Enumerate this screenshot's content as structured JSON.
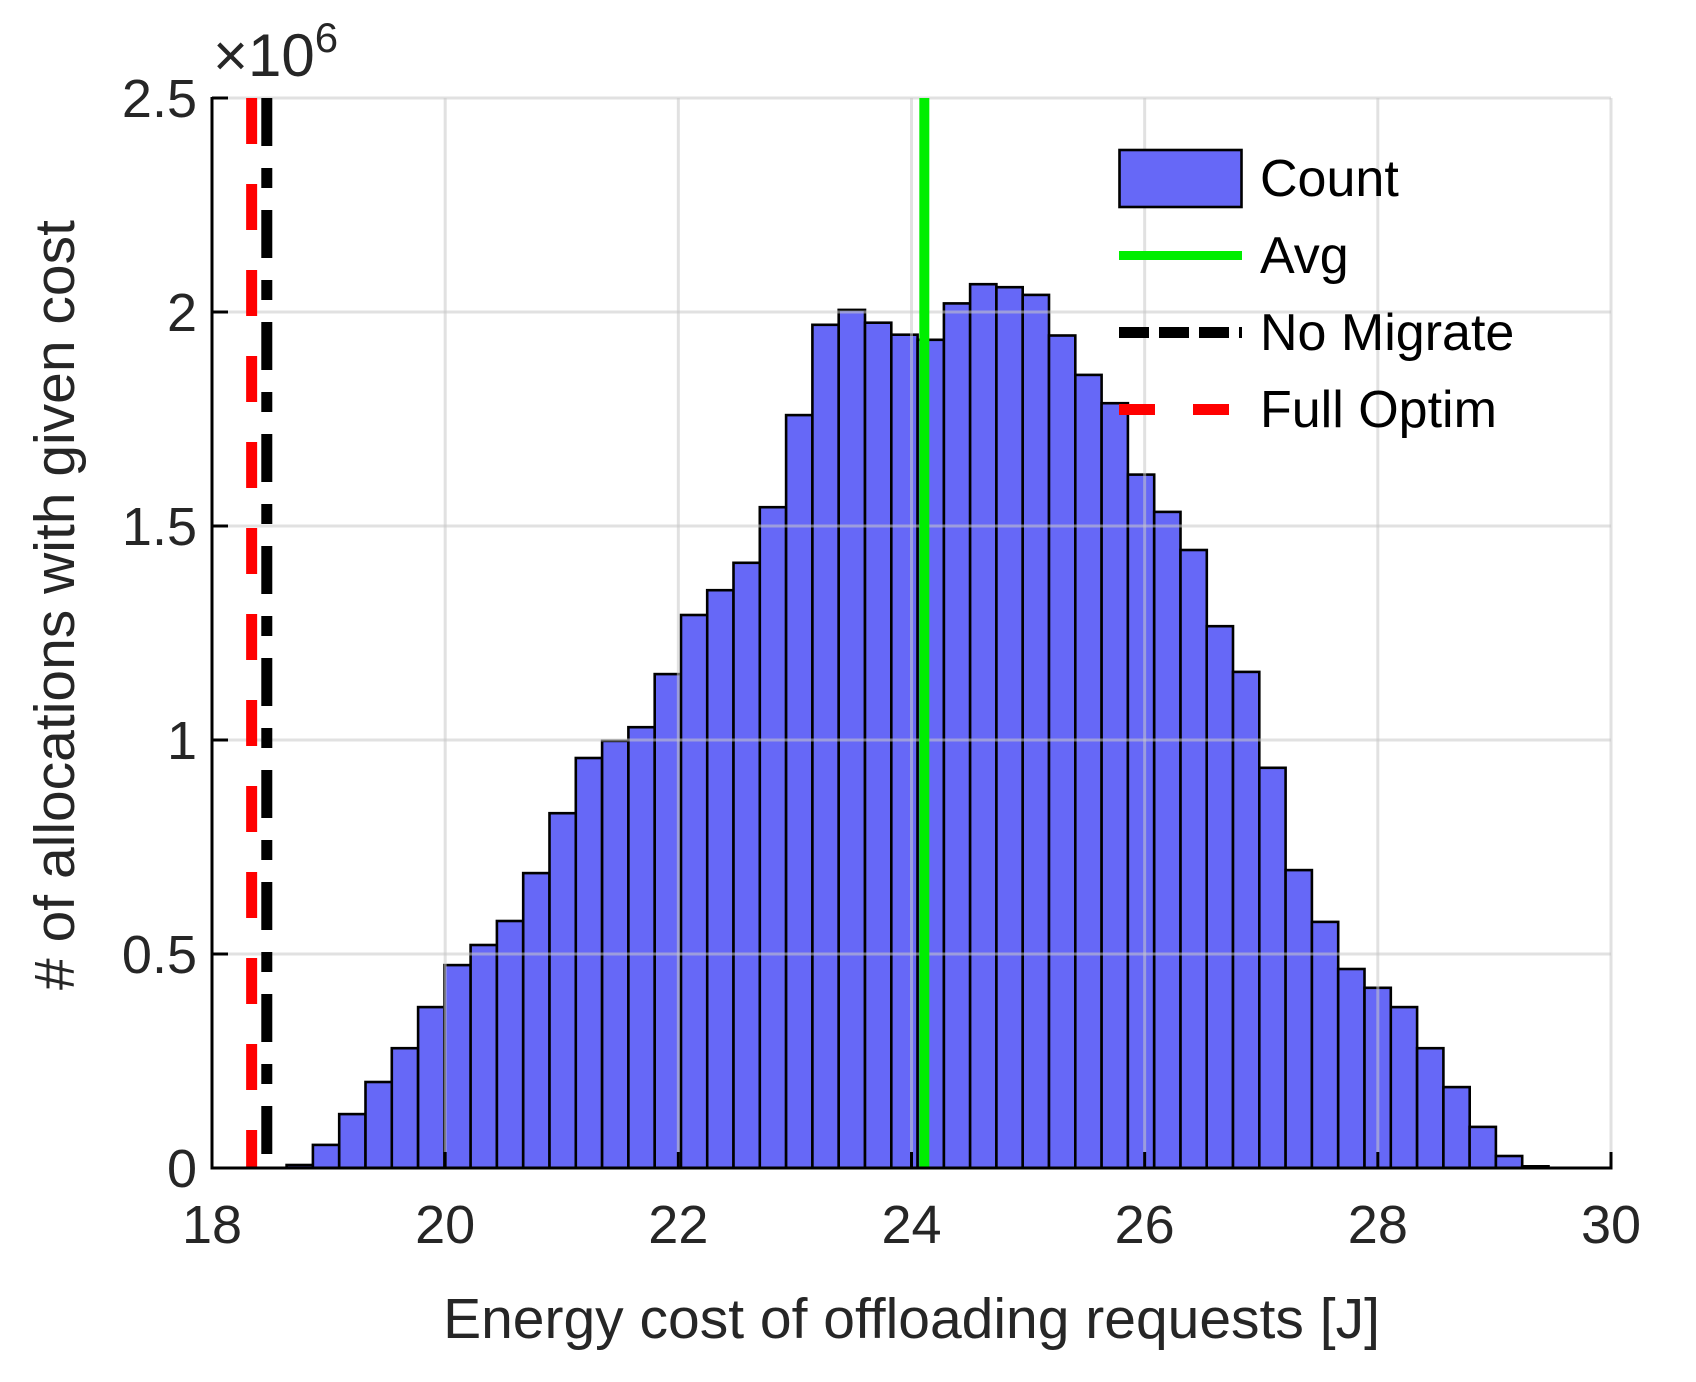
{
  "figure": {
    "xlabel": "Energy cost of offloading requests [J]",
    "ylabel": "# of allocations with given cost",
    "offset_label": {
      "multiplier": "×10",
      "exponent": "6"
    }
  },
  "chart_data": {
    "type": "bar",
    "subtype": "histogram",
    "title": "",
    "xlabel": "Energy cost of offloading requests [J]",
    "ylabel": "# of allocations with given cost",
    "y_offset_text": "×10^6",
    "y_unit_multiplier": 1000000,
    "xlim": [
      18,
      30
    ],
    "ylim_millions": [
      0,
      2.5
    ],
    "x_ticks": [
      18,
      20,
      22,
      24,
      26,
      28,
      30
    ],
    "y_ticks_millions": [
      0,
      0.5,
      1,
      1.5,
      2,
      2.5
    ],
    "y_tick_labels": [
      "0",
      "0.5",
      "1",
      "1.5",
      "2",
      "2.5"
    ],
    "grid": true,
    "bins": {
      "start": 18.64,
      "width": 0.2255,
      "count": 48
    },
    "counts_millions": [
      0.007,
      0.054,
      0.126,
      0.201,
      0.28,
      0.376,
      0.474,
      0.521,
      0.577,
      0.689,
      0.829,
      0.958,
      0.998,
      1.03,
      1.154,
      1.292,
      1.35,
      1.414,
      1.544,
      1.759,
      1.97,
      2.005,
      1.975,
      1.947,
      1.935,
      2.02,
      2.065,
      2.058,
      2.04,
      1.945,
      1.853,
      1.787,
      1.62,
      1.533,
      1.444,
      1.266,
      1.159,
      0.935,
      0.696,
      0.575,
      0.465,
      0.421,
      0.376,
      0.28,
      0.189,
      0.096,
      0.028,
      0.004
    ],
    "vlines": [
      {
        "name": "no-migrate",
        "x": 18.47,
        "color": "#000000",
        "style": "dashdot",
        "label": "No Migrate"
      },
      {
        "name": "full-optim",
        "x": 18.34,
        "color": "#ff0000",
        "style": "dashed",
        "label": "Full Optim"
      },
      {
        "name": "avg",
        "x": 24.11,
        "color": "#00ee00",
        "style": "solid",
        "label": "Avg"
      }
    ],
    "colors": {
      "bar_fill": "#6668f7",
      "bar_edge": "#000000",
      "grid": "#c8c8c8",
      "axis_line": "#000000",
      "axis_text": "#262626",
      "label_text": "#262626",
      "legend_text": "#000000"
    },
    "legend": {
      "position": "top-right",
      "entries": [
        {
          "label": "Count",
          "sample": "patch",
          "color": "#6668f7"
        },
        {
          "label": "Avg",
          "sample": "solid",
          "color": "#00ee00"
        },
        {
          "label": "No Migrate",
          "sample": "dashdot",
          "color": "#000000"
        },
        {
          "label": "Full Optim",
          "sample": "dashed",
          "color": "#ff0000"
        }
      ]
    }
  }
}
